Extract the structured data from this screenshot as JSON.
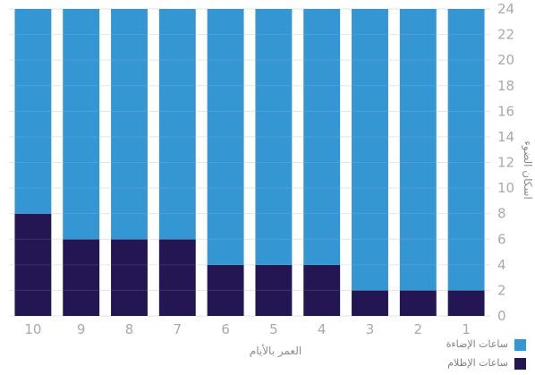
{
  "chart_data": {
    "type": "bar",
    "stacked": true,
    "categories": [
      "10",
      "9",
      "8",
      "7",
      "6",
      "5",
      "4",
      "3",
      "2",
      "1"
    ],
    "series": [
      {
        "name": "ساعات الإظلام",
        "color": "#241652",
        "values": [
          8,
          6,
          6,
          6,
          4,
          4,
          4,
          2,
          2,
          2
        ]
      },
      {
        "name": "ساعات الإضاءة",
        "color": "#3496d3",
        "values": [
          16,
          18,
          18,
          18,
          20,
          20,
          20,
          22,
          22,
          22
        ]
      }
    ],
    "xlabel": "العمر بالأيام",
    "ylabel": "اسكان الضوء",
    "ylim": [
      0,
      24
    ],
    "yticks": [
      0,
      2,
      4,
      6,
      8,
      10,
      12,
      14,
      16,
      18,
      20,
      22,
      24
    ],
    "y_axis_side": "right",
    "grid": true,
    "legend_position": "bottom-right"
  }
}
